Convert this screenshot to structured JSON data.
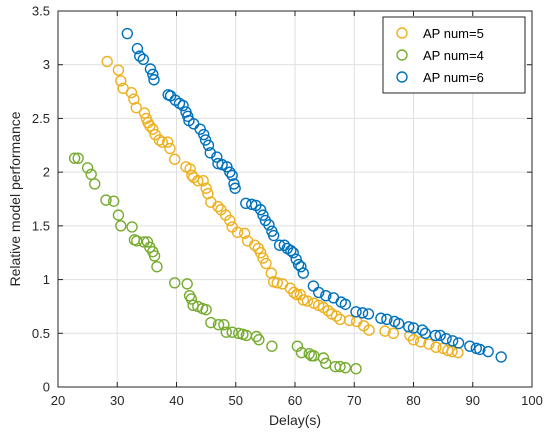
{
  "chart_data": {
    "type": "scatter",
    "title": "",
    "xlabel": "Delay(s)",
    "ylabel": "Relative model performance",
    "xlim": [
      20,
      100
    ],
    "ylim": [
      0,
      3.5
    ],
    "xticks": [
      "20",
      "30",
      "40",
      "50",
      "60",
      "70",
      "80",
      "90",
      "100"
    ],
    "yticks": [
      "0",
      "0.5",
      "1",
      "1.5",
      "2",
      "2.5",
      "3",
      "3.5"
    ],
    "grid": true,
    "legend_position": "top-right",
    "series": [
      {
        "name": "AP num=5",
        "color": "#EDB120",
        "points": [
          [
            28.3,
            3.03
          ],
          [
            30.2,
            2.95
          ],
          [
            30.6,
            2.85
          ],
          [
            31.0,
            2.78
          ],
          [
            32.4,
            2.74
          ],
          [
            32.8,
            2.68
          ],
          [
            33.2,
            2.6
          ],
          [
            34.6,
            2.55
          ],
          [
            34.9,
            2.5
          ],
          [
            35.2,
            2.46
          ],
          [
            35.5,
            2.43
          ],
          [
            36.0,
            2.4
          ],
          [
            36.4,
            2.35
          ],
          [
            37.1,
            2.3
          ],
          [
            37.6,
            2.28
          ],
          [
            38.5,
            2.28
          ],
          [
            38.9,
            2.22
          ],
          [
            39.7,
            2.12
          ],
          [
            41.6,
            2.05
          ],
          [
            42.3,
            2.03
          ],
          [
            42.6,
            1.97
          ],
          [
            42.9,
            1.95
          ],
          [
            43.6,
            1.92
          ],
          [
            44.5,
            1.92
          ],
          [
            45.0,
            1.85
          ],
          [
            45.3,
            1.8
          ],
          [
            45.8,
            1.72
          ],
          [
            47.0,
            1.68
          ],
          [
            47.5,
            1.65
          ],
          [
            48.3,
            1.6
          ],
          [
            49.0,
            1.55
          ],
          [
            49.4,
            1.49
          ],
          [
            50.3,
            1.44
          ],
          [
            51.5,
            1.43
          ],
          [
            52.0,
            1.36
          ],
          [
            53.2,
            1.32
          ],
          [
            53.8,
            1.29
          ],
          [
            54.2,
            1.25
          ],
          [
            54.6,
            1.2
          ],
          [
            55.1,
            1.15
          ],
          [
            56.0,
            1.06
          ],
          [
            56.4,
            0.98
          ],
          [
            57.0,
            0.97
          ],
          [
            57.9,
            0.96
          ],
          [
            59.2,
            0.92
          ],
          [
            59.8,
            0.88
          ],
          [
            60.3,
            0.86
          ],
          [
            60.9,
            0.86
          ],
          [
            61.4,
            0.81
          ],
          [
            62.1,
            0.8
          ],
          [
            63.2,
            0.78
          ],
          [
            64.0,
            0.76
          ],
          [
            64.8,
            0.74
          ],
          [
            65.6,
            0.71
          ],
          [
            66.2,
            0.68
          ],
          [
            67.0,
            0.66
          ],
          [
            67.6,
            0.63
          ],
          [
            69.2,
            0.62
          ],
          [
            70.4,
            0.61
          ],
          [
            71.6,
            0.57
          ],
          [
            72.5,
            0.53
          ],
          [
            75.2,
            0.52
          ],
          [
            76.6,
            0.5
          ],
          [
            79.4,
            0.48
          ],
          [
            80.0,
            0.44
          ],
          [
            81.2,
            0.42
          ],
          [
            82.6,
            0.4
          ],
          [
            83.8,
            0.37
          ],
          [
            85.0,
            0.36
          ],
          [
            85.8,
            0.34
          ],
          [
            86.5,
            0.33
          ],
          [
            87.5,
            0.32
          ]
        ]
      },
      {
        "name": "AP num=4",
        "color": "#77AC30",
        "points": [
          [
            22.8,
            2.13
          ],
          [
            23.4,
            2.13
          ],
          [
            25.0,
            2.04
          ],
          [
            25.6,
            1.98
          ],
          [
            26.2,
            1.89
          ],
          [
            28.1,
            1.74
          ],
          [
            29.4,
            1.73
          ],
          [
            30.2,
            1.6
          ],
          [
            30.6,
            1.5
          ],
          [
            32.5,
            1.49
          ],
          [
            32.9,
            1.37
          ],
          [
            33.3,
            1.36
          ],
          [
            34.5,
            1.35
          ],
          [
            35.1,
            1.35
          ],
          [
            35.5,
            1.3
          ],
          [
            36.0,
            1.26
          ],
          [
            36.3,
            1.22
          ],
          [
            36.7,
            1.12
          ],
          [
            39.7,
            0.97
          ],
          [
            41.8,
            0.96
          ],
          [
            42.2,
            0.85
          ],
          [
            42.5,
            0.82
          ],
          [
            42.8,
            0.76
          ],
          [
            43.6,
            0.75
          ],
          [
            44.4,
            0.73
          ],
          [
            45.0,
            0.72
          ],
          [
            45.8,
            0.6
          ],
          [
            47.1,
            0.58
          ],
          [
            48.0,
            0.58
          ],
          [
            48.4,
            0.51
          ],
          [
            49.4,
            0.51
          ],
          [
            50.5,
            0.5
          ],
          [
            51.2,
            0.49
          ],
          [
            51.8,
            0.48
          ],
          [
            53.5,
            0.47
          ],
          [
            53.9,
            0.44
          ],
          [
            56.1,
            0.38
          ],
          [
            60.4,
            0.38
          ],
          [
            61.1,
            0.32
          ],
          [
            62.4,
            0.31
          ],
          [
            62.8,
            0.29
          ],
          [
            63.2,
            0.29
          ],
          [
            64.8,
            0.27
          ],
          [
            65.2,
            0.22
          ],
          [
            66.8,
            0.19
          ],
          [
            67.6,
            0.19
          ],
          [
            68.5,
            0.18
          ],
          [
            70.3,
            0.17
          ]
        ]
      },
      {
        "name": "AP num=6",
        "color": "#0072BD",
        "points": [
          [
            31.7,
            3.29
          ],
          [
            33.4,
            3.15
          ],
          [
            33.8,
            3.08
          ],
          [
            34.4,
            3.05
          ],
          [
            35.6,
            2.96
          ],
          [
            36.0,
            2.91
          ],
          [
            36.2,
            2.86
          ],
          [
            38.6,
            2.72
          ],
          [
            39.0,
            2.71
          ],
          [
            39.8,
            2.67
          ],
          [
            40.5,
            2.64
          ],
          [
            41.1,
            2.62
          ],
          [
            41.6,
            2.56
          ],
          [
            41.9,
            2.52
          ],
          [
            42.1,
            2.48
          ],
          [
            42.9,
            2.45
          ],
          [
            44.0,
            2.4
          ],
          [
            44.6,
            2.35
          ],
          [
            44.9,
            2.3
          ],
          [
            45.4,
            2.25
          ],
          [
            45.7,
            2.18
          ],
          [
            46.8,
            2.14
          ],
          [
            47.0,
            2.08
          ],
          [
            47.7,
            2.07
          ],
          [
            48.5,
            2.05
          ],
          [
            49.0,
            2.0
          ],
          [
            49.4,
            1.97
          ],
          [
            49.7,
            1.89
          ],
          [
            49.9,
            1.85
          ],
          [
            51.7,
            1.71
          ],
          [
            52.7,
            1.7
          ],
          [
            53.4,
            1.69
          ],
          [
            54.2,
            1.65
          ],
          [
            54.6,
            1.6
          ],
          [
            55.0,
            1.55
          ],
          [
            55.6,
            1.51
          ],
          [
            56.1,
            1.45
          ],
          [
            56.4,
            1.41
          ],
          [
            57.4,
            1.32
          ],
          [
            58.2,
            1.32
          ],
          [
            58.7,
            1.29
          ],
          [
            59.3,
            1.27
          ],
          [
            59.7,
            1.25
          ],
          [
            60.2,
            1.19
          ],
          [
            60.6,
            1.14
          ],
          [
            61.0,
            1.12
          ],
          [
            61.4,
            1.06
          ],
          [
            63.1,
            0.94
          ],
          [
            64.0,
            0.88
          ],
          [
            65.2,
            0.85
          ],
          [
            66.5,
            0.83
          ],
          [
            67.8,
            0.79
          ],
          [
            68.5,
            0.77
          ],
          [
            70.3,
            0.7
          ],
          [
            71.4,
            0.69
          ],
          [
            72.4,
            0.68
          ],
          [
            74.5,
            0.64
          ],
          [
            75.5,
            0.63
          ],
          [
            76.8,
            0.61
          ],
          [
            77.5,
            0.59
          ],
          [
            79.2,
            0.56
          ],
          [
            80.0,
            0.55
          ],
          [
            81.5,
            0.53
          ],
          [
            82.0,
            0.5
          ],
          [
            83.7,
            0.48
          ],
          [
            84.5,
            0.48
          ],
          [
            85.5,
            0.45
          ],
          [
            86.6,
            0.43
          ],
          [
            87.6,
            0.41
          ],
          [
            89.5,
            0.38
          ],
          [
            90.6,
            0.36
          ],
          [
            91.2,
            0.35
          ],
          [
            92.6,
            0.33
          ],
          [
            94.8,
            0.28
          ]
        ]
      }
    ],
    "legend_order": [
      "AP num=5",
      "AP num=4",
      "AP num=6"
    ]
  }
}
